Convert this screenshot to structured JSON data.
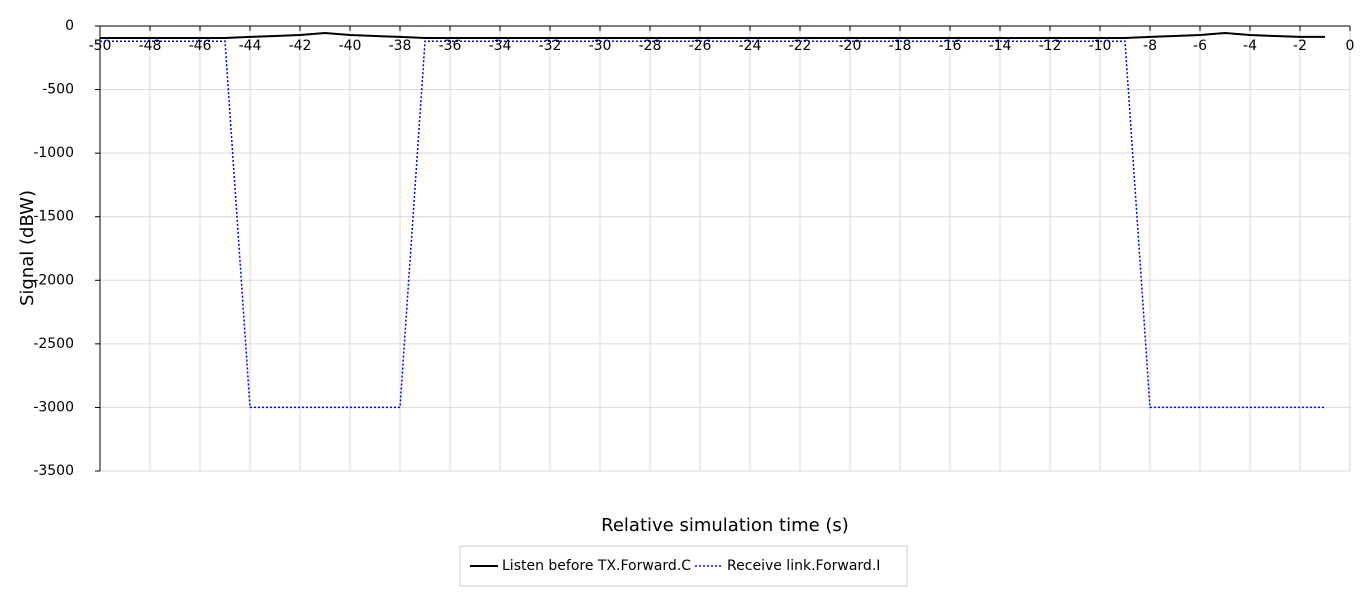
{
  "chart_data": {
    "type": "line",
    "x_label": "Relative simulation time (s)",
    "y_label": "Signal (dBW)",
    "x": [
      -50,
      -49,
      -48,
      -47,
      -46,
      -45,
      -44,
      -43,
      -42,
      -41,
      -40,
      -39,
      -38,
      -37,
      -36,
      -35,
      -34,
      -33,
      -32,
      -31,
      -30,
      -29,
      -28,
      -27,
      -26,
      -25,
      -24,
      -23,
      -22,
      -21,
      -20,
      -19,
      -18,
      -17,
      -16,
      -15,
      -14,
      -13,
      -12,
      -11,
      -10,
      -9,
      -8,
      -7,
      -6,
      -5,
      -4,
      -3,
      -2,
      -1
    ],
    "series": [
      {
        "name": "Listen before TX.Forward.C",
        "color": "#000000",
        "dash": "solid",
        "values": [
          -94,
          -94,
          -94,
          -94,
          -94,
          -94,
          -86,
          -79,
          -71,
          -55,
          -71,
          -79,
          -86,
          -94,
          -94,
          -94,
          -94,
          -94,
          -94,
          -94,
          -94,
          -94,
          -94,
          -94,
          -94,
          -94,
          -94,
          -94,
          -94,
          -94,
          -94,
          -94,
          -94,
          -94,
          -94,
          -94,
          -94,
          -94,
          -94,
          -94,
          -94,
          -94,
          -86,
          -79,
          -71,
          -55,
          -71,
          -79,
          -86,
          -86
        ]
      },
      {
        "name": "Receive link.Forward.I",
        "color": "#0000ff",
        "dash": "dotted",
        "values": [
          -120,
          -120,
          -120,
          -120,
          -120,
          -120,
          -3000,
          -3000,
          -3000,
          -3000,
          -3000,
          -3000,
          -3000,
          -120,
          -120,
          -120,
          -120,
          -120,
          -120,
          -120,
          -120,
          -120,
          -120,
          -120,
          -120,
          -120,
          -120,
          -120,
          -120,
          -120,
          -120,
          -120,
          -120,
          -120,
          -120,
          -120,
          -120,
          -120,
          -120,
          -120,
          -120,
          -120,
          -3000,
          -3000,
          -3000,
          -3000,
          -3000,
          -3000,
          -3000,
          -3000
        ]
      }
    ],
    "xlim": [
      -50,
      0
    ],
    "xticks": [
      -50,
      -48,
      -46,
      -44,
      -42,
      -40,
      -38,
      -36,
      -34,
      -32,
      -30,
      -28,
      -26,
      -24,
      -22,
      -20,
      -18,
      -16,
      -14,
      -12,
      -10,
      -8,
      -6,
      -4,
      -2,
      0
    ],
    "ylim": [
      -3500,
      0
    ],
    "yticks": [
      0,
      -500,
      -1000,
      -1500,
      -2000,
      -2500,
      -3000,
      -3500
    ],
    "grid": true
  }
}
